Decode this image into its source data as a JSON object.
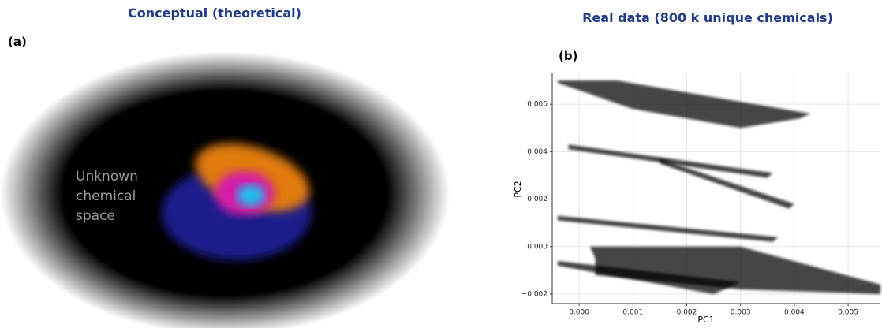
{
  "chart_data": [
    {
      "type": "illustration",
      "title": "Conceptual (theoretical)",
      "panel_label": "(a)",
      "annotation": [
        "Unknown",
        "chemical",
        "space"
      ]
    },
    {
      "type": "scatter",
      "title": "Real data (800 k unique chemicals)",
      "panel_label": "(b)",
      "x_label": "PC1",
      "y_label": "PC2",
      "grid": true,
      "xlim": [
        -0.0005,
        0.0056
      ],
      "ylim": [
        -0.0024,
        0.0073
      ],
      "xticks": [
        {
          "value": 0,
          "label": "0.000"
        },
        {
          "value": 0.001,
          "label": "0.001"
        },
        {
          "value": 0.002,
          "label": "0.002"
        },
        {
          "value": 0.003,
          "label": "0.003"
        },
        {
          "value": 0.004,
          "label": "0.004"
        },
        {
          "value": 0.005,
          "label": "0.005"
        }
      ],
      "yticks": [
        {
          "value": -0.002,
          "label": "−0.002"
        },
        {
          "value": 0,
          "label": "0.000"
        },
        {
          "value": 0.002,
          "label": "0.002"
        },
        {
          "value": 0.004,
          "label": "0.004"
        },
        {
          "value": 0.006,
          "label": "0.006"
        }
      ],
      "series": [
        {
          "color": "#000000",
          "x": [
            -0.0004,
            0.0007,
            0.0043,
            0.0041,
            0.003,
            0.001,
            -0.0004
          ],
          "y": [
            0.007,
            0.007,
            0.0056,
            0.0054,
            0.005,
            0.0058,
            0.0069
          ]
        },
        {
          "color": "#000000",
          "x": [
            -0.0002,
            0.0036,
            0.0035,
            -0.0002
          ],
          "y": [
            0.0043,
            0.0031,
            0.0029,
            0.0041
          ]
        },
        {
          "color": "#000000",
          "x": [
            0.0015,
            0.004,
            0.0039,
            0.0015
          ],
          "y": [
            0.0037,
            0.0018,
            0.0016,
            0.0035
          ]
        },
        {
          "color": "#000000",
          "x": [
            -0.0004,
            0.0037,
            0.0036,
            -0.0004
          ],
          "y": [
            0.0013,
            0.0004,
            0.0002,
            0.0011
          ]
        },
        {
          "color": "#000000",
          "x": [
            0.0002,
            0.003,
            0.0056,
            0.0056,
            0.003,
            0.0003,
            0.0003
          ],
          "y": [
            0,
            0,
            -0.0016,
            -0.002,
            -0.0018,
            -0.0012,
            -0.0005
          ]
        },
        {
          "color": "#000000",
          "x": [
            -0.0004,
            0.003,
            0.0025,
            -0.0004
          ],
          "y": [
            -0.0006,
            -0.0015,
            -0.002,
            -0.0008
          ]
        }
      ]
    }
  ]
}
